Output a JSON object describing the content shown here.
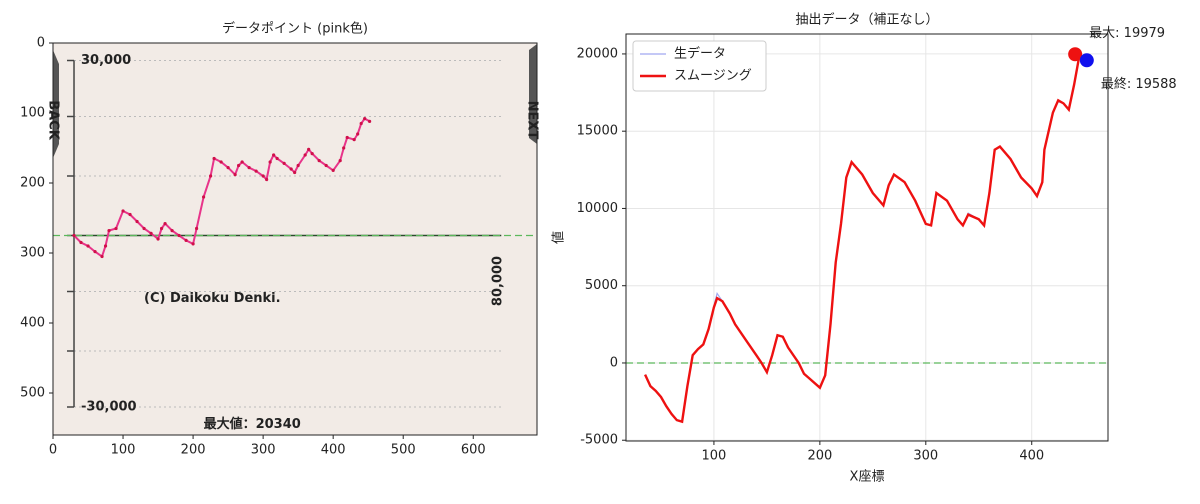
{
  "chart_data": [
    {
      "type": "image-trace",
      "title": "データポイント (pink色)",
      "x": [
        30,
        40,
        50,
        60,
        70,
        75,
        80,
        90,
        100,
        110,
        120,
        130,
        140,
        150,
        155,
        160,
        170,
        180,
        190,
        200,
        205,
        215,
        225,
        230,
        240,
        250,
        260,
        265,
        270,
        280,
        290,
        300,
        305,
        310,
        315,
        320,
        330,
        340,
        345,
        350,
        360,
        365,
        370,
        380,
        390,
        400,
        410,
        415,
        420,
        430,
        435,
        440,
        445,
        452
      ],
      "values": [
        275,
        285,
        290,
        298,
        305,
        290,
        268,
        265,
        240,
        245,
        255,
        265,
        272,
        280,
        265,
        258,
        268,
        275,
        282,
        287,
        265,
        220,
        190,
        165,
        170,
        178,
        188,
        175,
        170,
        178,
        183,
        190,
        195,
        170,
        160,
        165,
        172,
        180,
        185,
        175,
        160,
        152,
        158,
        168,
        175,
        182,
        168,
        150,
        135,
        138,
        130,
        115,
        108,
        112
      ],
      "color": "#e8348a",
      "hline": 275,
      "image_texts": [
        "30,000",
        "-30,000",
        "80,000",
        "(C) Daikoku Denki.",
        "最大値：20340",
        "BACK",
        "NEXT"
      ],
      "xlim": [
        0,
        691
      ],
      "ylim": [
        560,
        0
      ],
      "xticks": [
        0,
        100,
        200,
        300,
        400,
        500,
        600
      ],
      "yticks": [
        0,
        100,
        200,
        300,
        400,
        500
      ]
    },
    {
      "type": "line",
      "title": "抽出データ（補正なし）",
      "x_label": "X座標",
      "y_label": "値",
      "x": [
        35,
        40,
        45,
        50,
        55,
        60,
        65,
        70,
        75,
        80,
        85,
        90,
        95,
        100,
        103,
        108,
        115,
        120,
        130,
        140,
        145,
        150,
        155,
        160,
        165,
        170,
        180,
        185,
        190,
        200,
        205,
        210,
        215,
        220,
        225,
        230,
        240,
        250,
        260,
        265,
        270,
        280,
        290,
        300,
        305,
        310,
        320,
        330,
        335,
        340,
        350,
        355,
        360,
        365,
        370,
        380,
        390,
        400,
        405,
        410,
        412,
        420,
        425,
        430,
        435,
        440,
        445
      ],
      "series": [
        {
          "name": "生データ",
          "color": "#a0a8f0",
          "values": [
            -750,
            -1500,
            -1800,
            -2200,
            -2800,
            -3300,
            -3700,
            -3800,
            -1500,
            500,
            900,
            1200,
            2200,
            3700,
            4500,
            4000,
            3200,
            2500,
            1500,
            500,
            0,
            -600,
            500,
            1800,
            1700,
            1000,
            0,
            -700,
            -1000,
            -1600,
            -800,
            2500,
            6500,
            9000,
            12000,
            13000,
            12200,
            11000,
            10200,
            11500,
            12200,
            11700,
            10500,
            9000,
            8900,
            11000,
            10500,
            9300,
            8900,
            9700,
            9300,
            8900,
            10900,
            13800,
            14000,
            13200,
            12000,
            11300,
            10800,
            11700,
            13800,
            16200,
            16900,
            16800,
            16400,
            18100,
            19900
          ]
        },
        {
          "name": "スムージング",
          "color": "#ee1111",
          "values": [
            -750,
            -1500,
            -1800,
            -2200,
            -2800,
            -3300,
            -3700,
            -3800,
            -1500,
            500,
            900,
            1200,
            2200,
            3600,
            4200,
            4000,
            3200,
            2500,
            1500,
            500,
            0,
            -600,
            500,
            1800,
            1700,
            1000,
            0,
            -700,
            -1000,
            -1600,
            -800,
            2500,
            6500,
            9000,
            12000,
            13000,
            12200,
            11000,
            10200,
            11500,
            12200,
            11700,
            10500,
            9000,
            8900,
            11000,
            10500,
            9300,
            8900,
            9600,
            9300,
            8900,
            11000,
            13800,
            14000,
            13200,
            12000,
            11300,
            10800,
            11700,
            13800,
            16200,
            17000,
            16800,
            16400,
            18000,
            19900
          ]
        }
      ],
      "highlights": [
        {
          "x": 441,
          "value": 19979,
          "label": "最大: 19979",
          "color": "#ee1111"
        },
        {
          "x": 452,
          "value": 19588,
          "label": "最終: 19588",
          "color": "#1010ee"
        }
      ],
      "hline": 0,
      "grid": true,
      "legend": "upper-left",
      "xlim": [
        17,
        472
      ],
      "ylim": [
        -5050,
        21290
      ],
      "xticks": [
        100,
        200,
        300,
        400
      ],
      "yticks": [
        -5000,
        0,
        5000,
        10000,
        15000,
        20000
      ]
    }
  ]
}
